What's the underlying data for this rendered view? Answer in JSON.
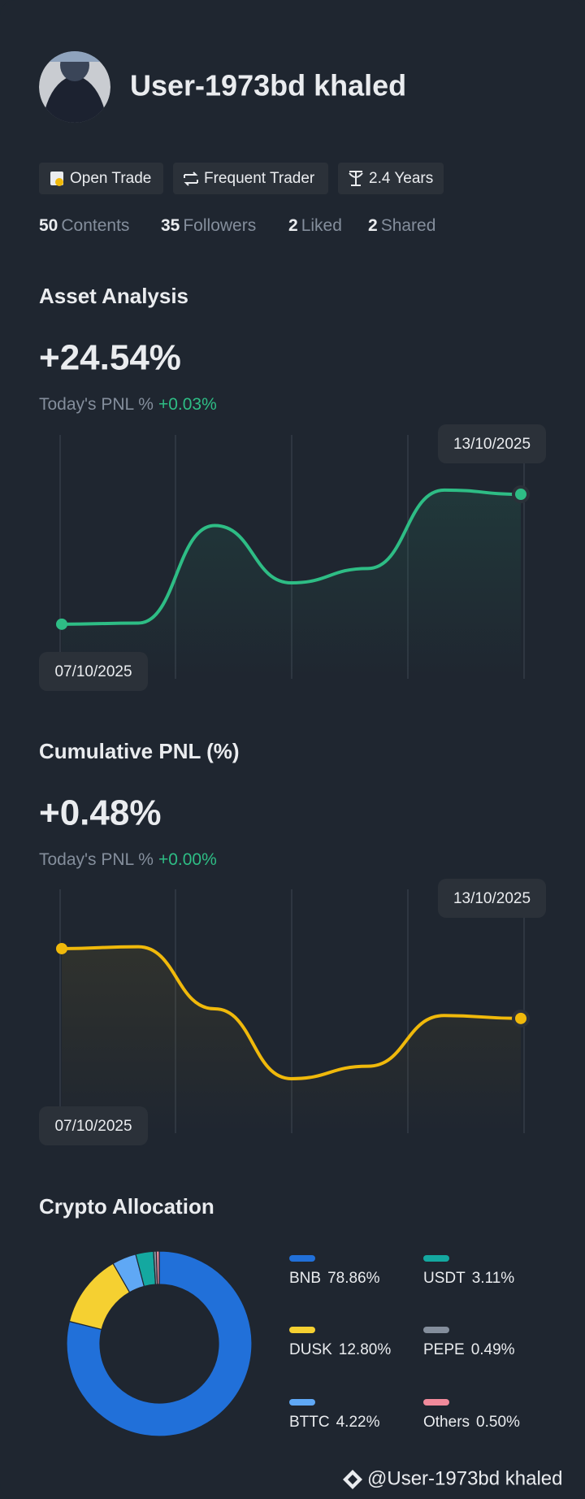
{
  "profile": {
    "name": "User-1973bd khaled",
    "badges": [
      "Open Trade",
      "Frequent Trader",
      "2.4 Years"
    ],
    "stats": [
      {
        "value": 50,
        "label": "Contents"
      },
      {
        "value": 35,
        "label": "Followers"
      },
      {
        "value": 2,
        "label": "Liked"
      },
      {
        "value": 2,
        "label": "Shared"
      }
    ]
  },
  "chart_data": [
    {
      "type": "line",
      "title": "Asset Analysis",
      "headline": "+24.54%",
      "subtitle": "Today's PNL %",
      "today_change": "+0.03%",
      "categories": [
        "07/10/2025",
        null,
        null,
        null,
        null,
        null,
        "13/10/2025"
      ],
      "values": [
        0,
        0.2,
        18.6,
        7.8,
        10.5,
        25.3,
        24.5
      ],
      "color": "#2ebd85",
      "ylim": [
        -10.3,
        35.7
      ]
    },
    {
      "type": "line",
      "title": "Cumulative PNL (%)",
      "headline": "+0.48%",
      "subtitle": "Today's PNL %",
      "today_change": "+0.00%",
      "categories": [
        "07/10/2025",
        null,
        null,
        null,
        null,
        null,
        "13/10/2025"
      ],
      "values": [
        1.21,
        1.23,
        0.58,
        -0.15,
        -0.02,
        0.51,
        0.48
      ],
      "color": "#f0b90b",
      "ylim": [
        -0.72,
        1.83
      ]
    },
    {
      "type": "pie",
      "title": "Crypto Allocation",
      "categories": [
        "BNB",
        "DUSK",
        "BTTC",
        "USDT",
        "PEPE",
        "Others"
      ],
      "values": [
        78.86,
        12.8,
        4.22,
        3.11,
        0.49,
        0.5
      ],
      "value_labels": [
        "78.86%",
        "12.80%",
        "4.22%",
        "3.11%",
        "0.49%",
        "0.50%"
      ],
      "colors": [
        "#2170d9",
        "#f5d031",
        "#5fa8f5",
        "#14a8a0",
        "#848e9c",
        "#f08a9b"
      ]
    }
  ],
  "watermark": "@User-1973bd khaled"
}
